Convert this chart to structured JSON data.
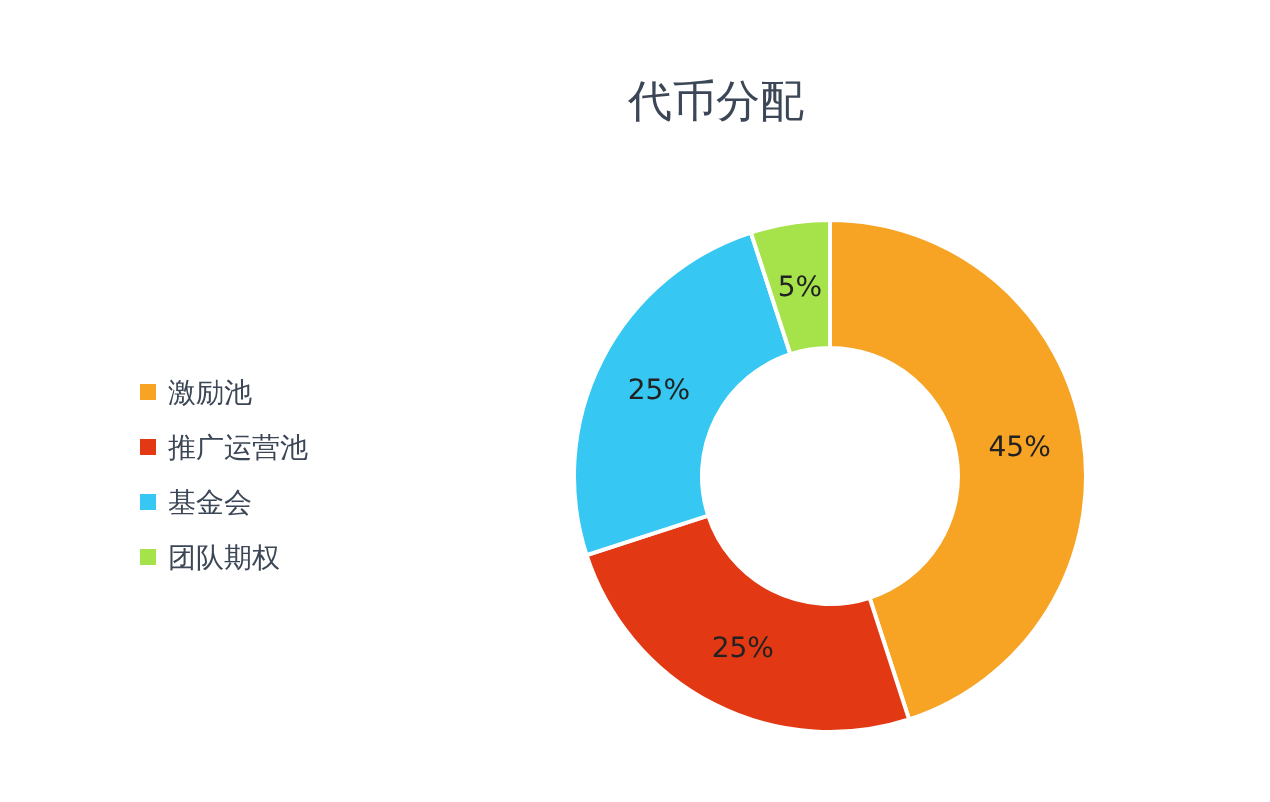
{
  "chart_data": {
    "type": "donut",
    "title": "代币分配",
    "categories": [
      "激励池",
      "推广运营池",
      "基金会",
      "团队期权"
    ],
    "values": [
      45,
      25,
      25,
      5
    ],
    "colors": [
      "#f7a324",
      "#e23814",
      "#36c8f2",
      "#a6e34b"
    ],
    "value_labels": [
      "45%",
      "25%",
      "25%",
      "5%"
    ],
    "legend": "left"
  }
}
